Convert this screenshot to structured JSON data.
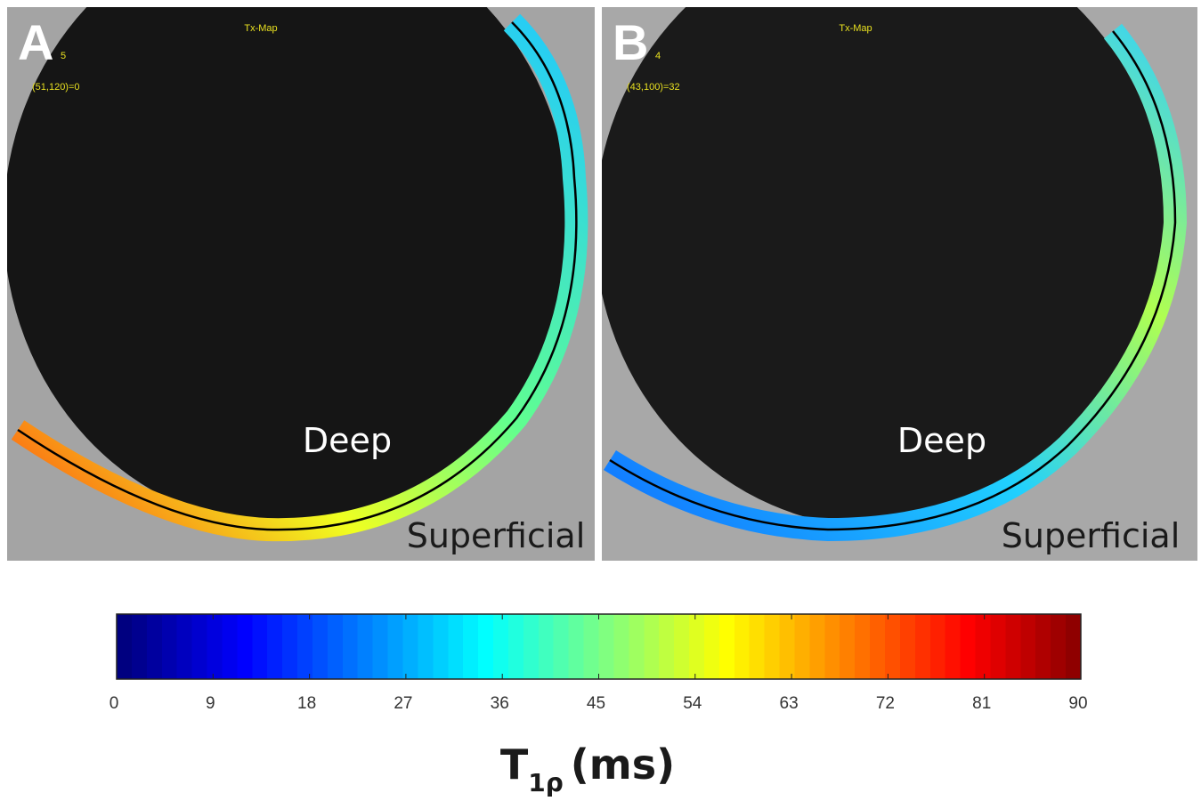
{
  "panels": [
    {
      "label": "A",
      "slice": "5",
      "title": "Tx-Map",
      "readout": "(51,120)=0",
      "deep": "Deep",
      "superficial": "Superficial"
    },
    {
      "label": "B",
      "slice": "4",
      "title": "Tx-Map",
      "readout": "(43,100)=32",
      "deep": "Deep",
      "superficial": "Superficial"
    }
  ],
  "colorbar": {
    "colormap": "jet",
    "lim": [
      0,
      90
    ],
    "ticks": [
      0,
      9,
      18,
      27,
      36,
      45,
      54,
      63,
      72,
      81,
      90
    ],
    "label": {
      "symbol": "T",
      "subscript": "1ρ",
      "unit": "(ms)"
    }
  }
}
